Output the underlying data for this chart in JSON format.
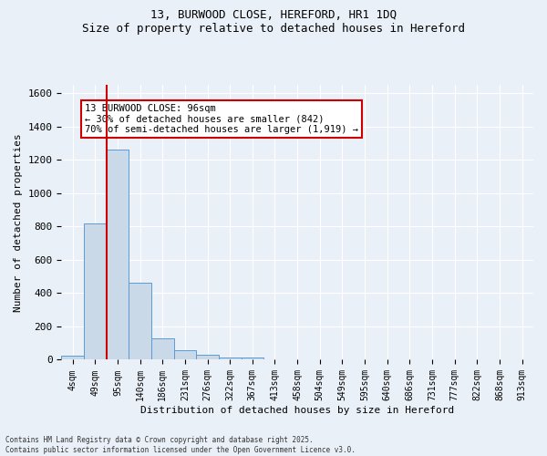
{
  "title_line1": "13, BURWOOD CLOSE, HEREFORD, HR1 1DQ",
  "title_line2": "Size of property relative to detached houses in Hereford",
  "xlabel": "Distribution of detached houses by size in Hereford",
  "ylabel": "Number of detached properties",
  "bar_values": [
    25,
    820,
    1260,
    460,
    130,
    60,
    28,
    15,
    12,
    0,
    0,
    0,
    0,
    0,
    0,
    0,
    0,
    0,
    0,
    0,
    0
  ],
  "bin_labels": [
    "4sqm",
    "49sqm",
    "95sqm",
    "140sqm",
    "186sqm",
    "231sqm",
    "276sqm",
    "322sqm",
    "367sqm",
    "413sqm",
    "458sqm",
    "504sqm",
    "549sqm",
    "595sqm",
    "640sqm",
    "686sqm",
    "731sqm",
    "777sqm",
    "822sqm",
    "868sqm",
    "913sqm"
  ],
  "bar_color": "#c9d9e8",
  "bar_edge_color": "#5b9bd5",
  "red_line_x": 1.5,
  "marker_color": "#cc0000",
  "ylim": [
    0,
    1650
  ],
  "yticks": [
    0,
    200,
    400,
    600,
    800,
    1000,
    1200,
    1400,
    1600
  ],
  "annotation_text": "13 BURWOOD CLOSE: 96sqm\n← 30% of detached houses are smaller (842)\n70% of semi-detached houses are larger (1,919) →",
  "annotation_box_color": "#ffffff",
  "annotation_box_edge": "#cc0000",
  "footer_line1": "Contains HM Land Registry data © Crown copyright and database right 2025.",
  "footer_line2": "Contains public sector information licensed under the Open Government Licence v3.0.",
  "background_color": "#eaf0f8",
  "grid_color": "#ffffff"
}
